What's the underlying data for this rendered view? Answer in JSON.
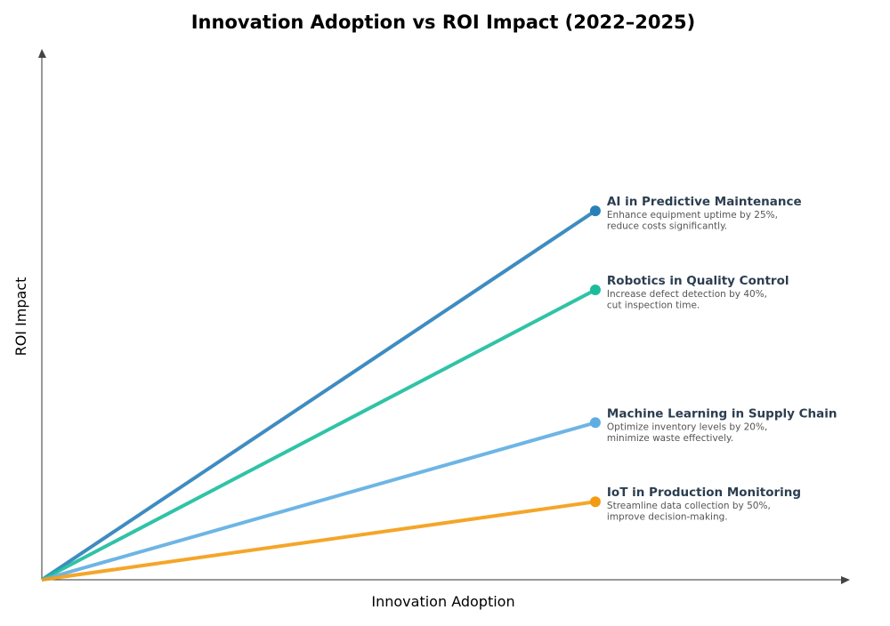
{
  "chart_data": {
    "type": "line",
    "title": "Innovation Adoption vs ROI Impact (2022–2025)",
    "xlabel": "Innovation Adoption",
    "ylabel": "ROI Impact",
    "xlim": [
      0,
      1.46
    ],
    "ylim": [
      0,
      1
    ],
    "grid": false,
    "ticks": false,
    "series": [
      {
        "name": "AI in Predictive Maintenance",
        "desc": [
          "Enhance equipment uptime by 25%,",
          "reduce costs significantly."
        ],
        "color": "#2980b9",
        "points": [
          [
            0,
            0
          ],
          [
            1,
            0.695
          ]
        ]
      },
      {
        "name": "Robotics in Quality Control",
        "desc": [
          "Increase defect detection by 40%,",
          "cut inspection time."
        ],
        "color": "#1abc9c",
        "points": [
          [
            0,
            0
          ],
          [
            1,
            0.546
          ]
        ]
      },
      {
        "name": "Machine Learning in Supply Chain",
        "desc": [
          "Optimize inventory levels by 20%,",
          "minimize waste effectively."
        ],
        "color": "#5dade2",
        "points": [
          [
            0,
            0
          ],
          [
            1,
            0.296
          ]
        ]
      },
      {
        "name": "IoT in Production Monitoring",
        "desc": [
          "Streamline data collection by 50%,",
          "improve decision-making."
        ],
        "color": "#f39c12",
        "points": [
          [
            0,
            0
          ],
          [
            1,
            0.147
          ]
        ]
      }
    ]
  }
}
